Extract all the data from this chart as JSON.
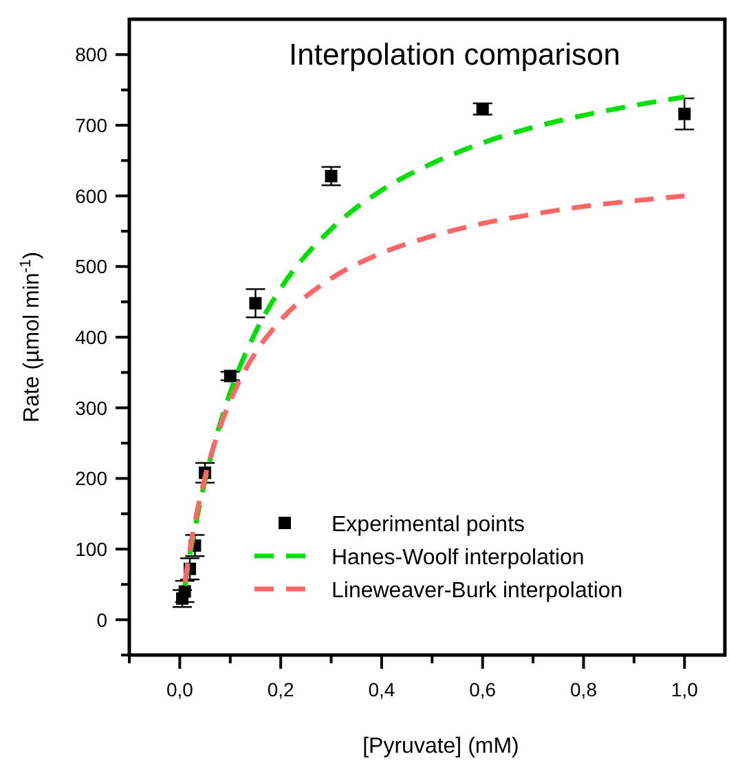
{
  "chart_data": {
    "type": "scatter",
    "title": "Interpolation comparison",
    "xlabel": "[Pyruvate] (mM)",
    "ylabel": "Rate (µmol min$^{-1}$)",
    "xlim": [
      -0.1,
      1.08
    ],
    "ylim": [
      -50,
      850
    ],
    "xticks": [
      {
        "value": -0.1,
        "label": null
      },
      {
        "value": 0,
        "label": "0,0"
      },
      {
        "value": 0.1,
        "label": null
      },
      {
        "value": 0.2,
        "label": "0,2"
      },
      {
        "value": 0.3,
        "label": null
      },
      {
        "value": 0.4,
        "label": "0,4"
      },
      {
        "value": 0.5,
        "label": null
      },
      {
        "value": 0.6,
        "label": "0,6"
      },
      {
        "value": 0.7,
        "label": null
      },
      {
        "value": 0.8,
        "label": "0,8"
      },
      {
        "value": 0.9,
        "label": null
      },
      {
        "value": 1,
        "label": "1,0"
      }
    ],
    "yticks": [
      {
        "value": -50,
        "label": null
      },
      0,
      {
        "value": 50,
        "label": null
      },
      100,
      {
        "value": 150,
        "label": null
      },
      200,
      {
        "value": 250,
        "label": null
      },
      300,
      {
        "value": 350,
        "label": null
      },
      400,
      {
        "value": 450,
        "label": null
      },
      500,
      {
        "value": 550,
        "label": null
      },
      600,
      {
        "value": 650,
        "label": null
      },
      700,
      {
        "value": 750,
        "label": null
      },
      800
    ],
    "grid": false,
    "legend": "bottom right",
    "series": [
      {
        "name": "Experimental points",
        "color": "#000000",
        "marker": "square",
        "x": [
          0.005,
          0.01,
          0.02,
          0.03,
          0.05,
          0.1,
          0.15,
          0.3,
          0.6,
          1.0
        ],
        "values": [
          30,
          40,
          72,
          105,
          208,
          345,
          448,
          628,
          723,
          716
        ],
        "errors": [
          12,
          15,
          15,
          15,
          14,
          6,
          20,
          13,
          8,
          22
        ]
      },
      {
        "name": "Hanes-Woolf interpolation",
        "type": "line",
        "color": "#00e000",
        "line_style": "dashed",
        "marker": "none",
        "x": [
          0.01,
          0.02,
          0.03,
          0.05,
          0.075,
          0.1,
          0.15,
          0.2,
          0.3,
          0.4,
          0.5,
          0.6,
          0.7,
          0.8,
          0.9,
          1.0
        ],
        "values": [
          48,
          92,
          130,
          197,
          266,
          322,
          407,
          469,
          553,
          608,
          646,
          675,
          697,
          714,
          728,
          740
        ]
      },
      {
        "name": "Lineweaver-Burk interpolation",
        "type": "line",
        "color": "#ff6666",
        "line_style": "dashed",
        "marker": "none",
        "x": [
          0.01,
          0.02,
          0.03,
          0.05,
          0.075,
          0.1,
          0.15,
          0.2,
          0.3,
          0.4,
          0.5,
          0.6,
          0.7,
          0.8,
          0.9,
          1.0
        ],
        "values": [
          53,
          99,
          138,
          202,
          263,
          310,
          378,
          424,
          483,
          519,
          543,
          561,
          574,
          585,
          593,
          600
        ]
      }
    ]
  }
}
